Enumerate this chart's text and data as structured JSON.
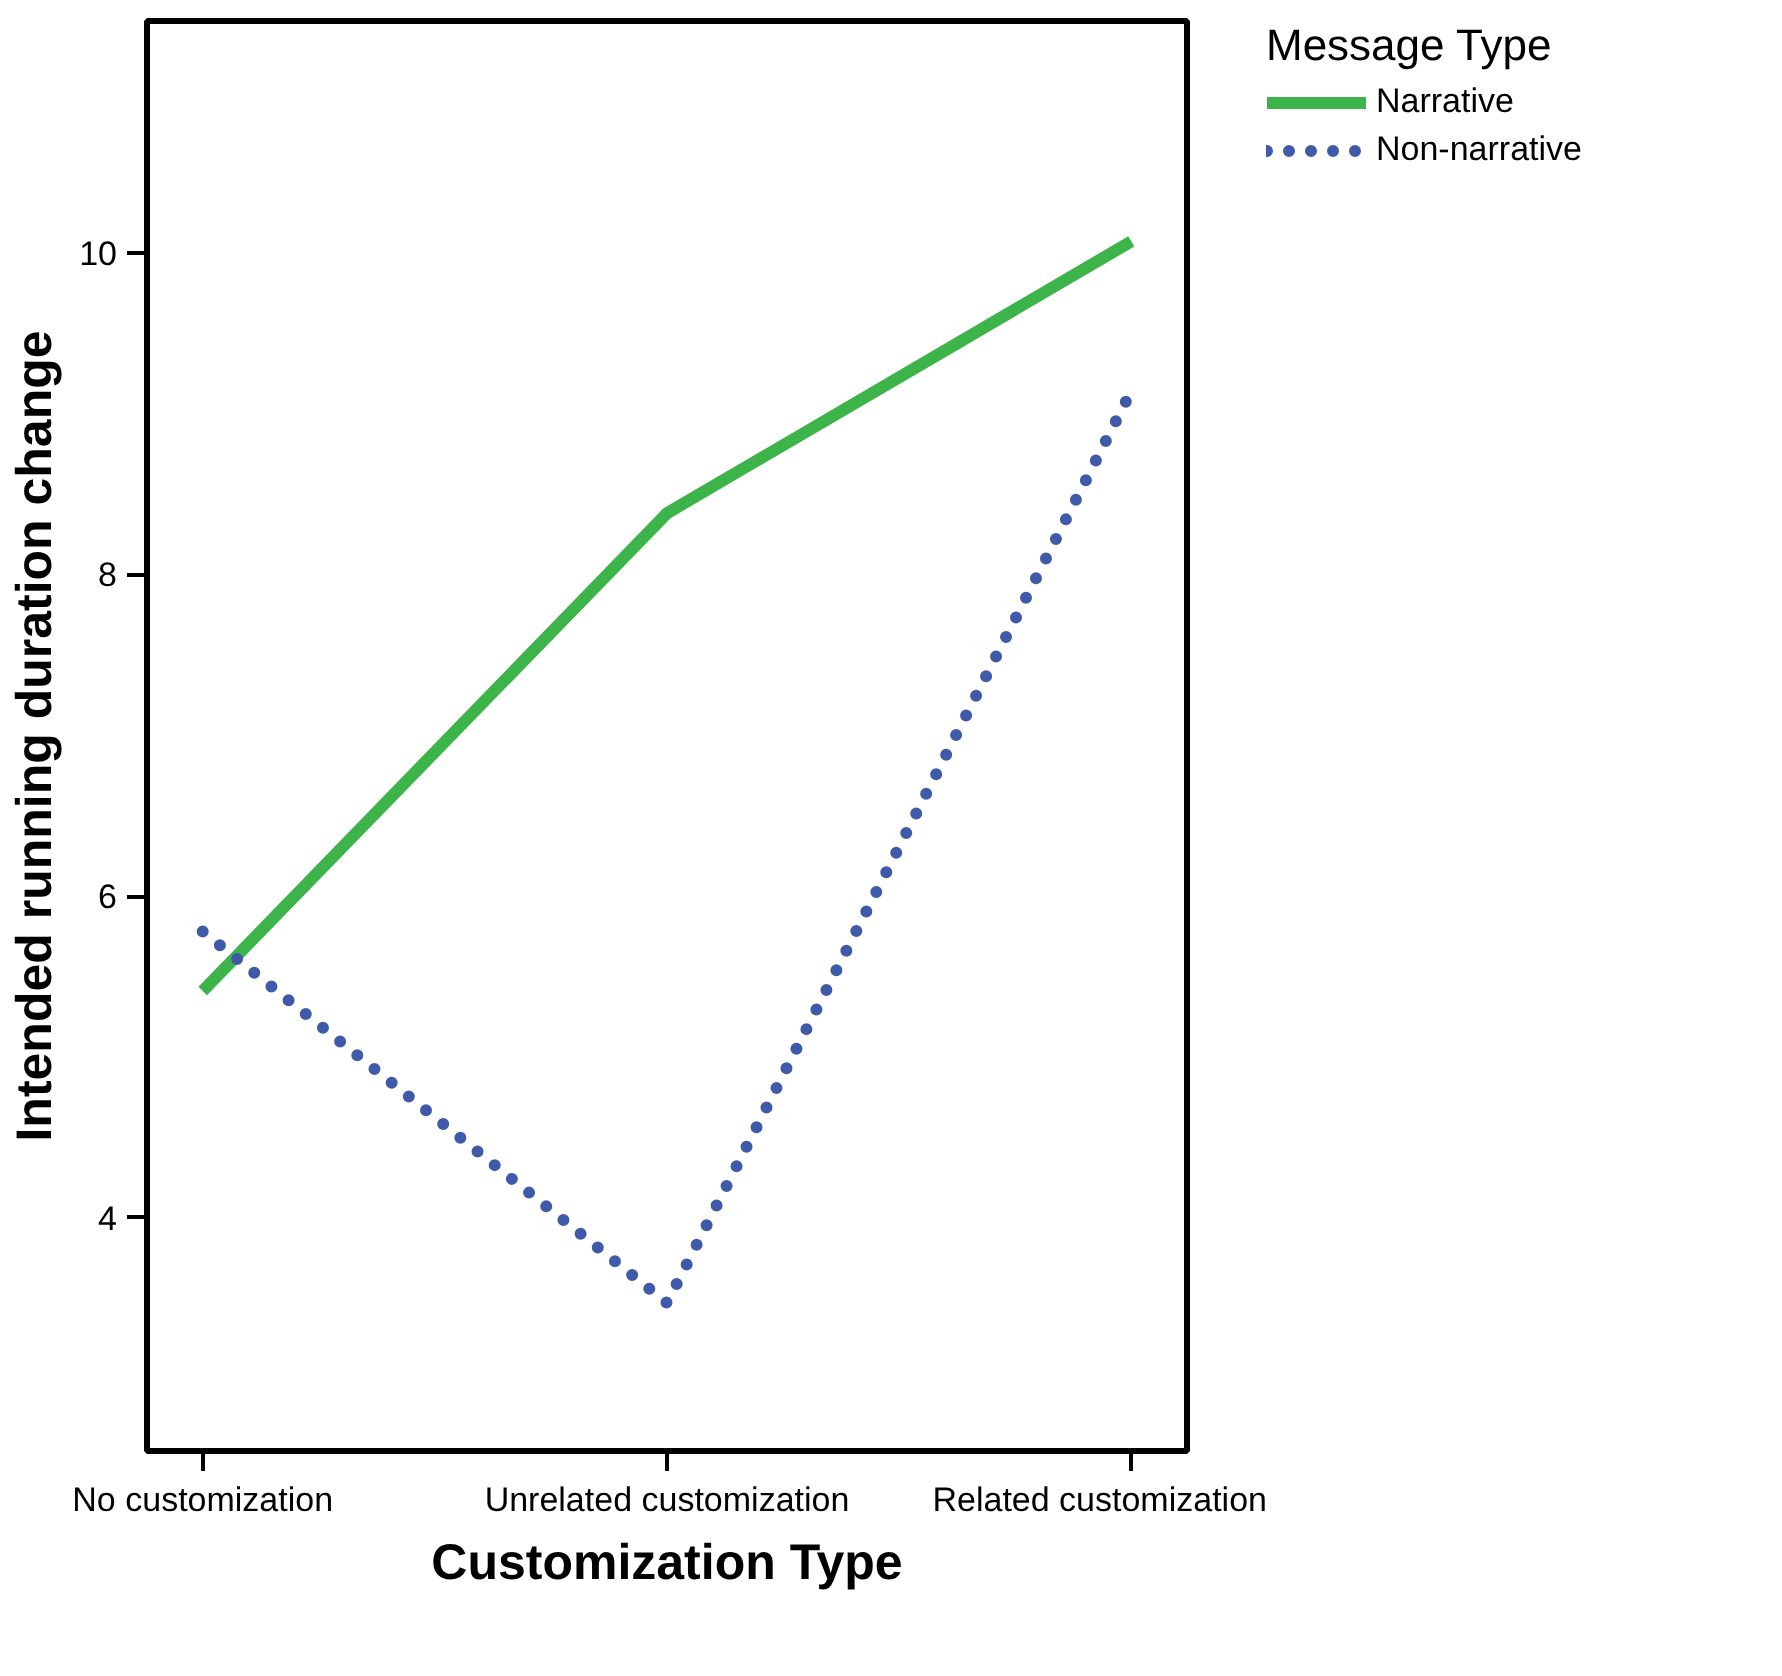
{
  "chart_data": {
    "type": "line",
    "xlabel": "Customization Type",
    "ylabel": "Intended running duration change",
    "legend_title": "Message Type",
    "categories": [
      "No customization",
      "Unrelated customization",
      "Related customization"
    ],
    "series": [
      {
        "name": "Narrative",
        "color": "#3cb44a",
        "values": [
          5.41,
          8.38,
          10.07
        ],
        "line_style": "solid"
      },
      {
        "name": "Non-narrative",
        "color": "#3f5aa8",
        "values": [
          5.78,
          3.47,
          9.14
        ],
        "line_style": "dotted"
      }
    ],
    "ylim": [
      2.55,
      11.44
    ],
    "yticks": [
      4,
      6,
      8,
      10
    ],
    "grid": false,
    "legend": "top right",
    "marker": "none"
  }
}
